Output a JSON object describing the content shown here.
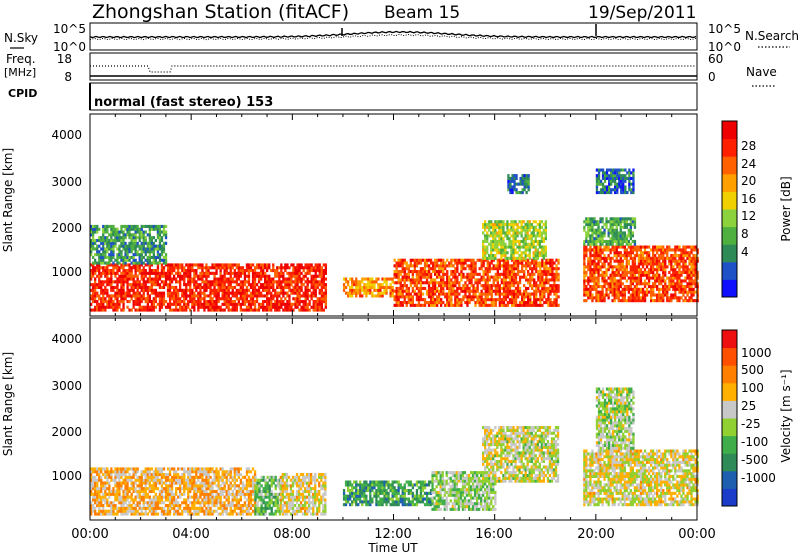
{
  "header": {
    "title": "Zhongshan Station (fitACF)",
    "beam": "Beam 15",
    "date": "19/Sep/2011"
  },
  "left_labels": {
    "nsky": "N.Sky",
    "freq": "Freq.",
    "mhz": "[MHz]",
    "cpid": "CPID"
  },
  "right_labels": {
    "nsearch": "N.Search",
    "nave": "Nave"
  },
  "noise_panel": {
    "left_ticks": [
      "10^5",
      "10^0"
    ],
    "right_ticks": [
      "10^5",
      "10^0"
    ]
  },
  "freq_panel": {
    "left_ticks": [
      "18",
      "8"
    ],
    "right_ticks": [
      "60",
      "0"
    ]
  },
  "cpid_text": "normal (fast stereo) 153",
  "x_axis": {
    "ticks": [
      "00:00",
      "04:00",
      "08:00",
      "12:00",
      "16:00",
      "20:00",
      "00:00"
    ],
    "label": "Time UT"
  },
  "power_panel": {
    "ylabel": "Slant Range [km]",
    "yticks": [
      "4000",
      "3000",
      "2000",
      "1000"
    ],
    "cbar_label": "Power [dB]",
    "cbar_ticks": [
      "28",
      "24",
      "20",
      "16",
      "12",
      "8",
      "4"
    ],
    "colors": [
      "#1010ff",
      "#1e50c8",
      "#2e8b57",
      "#4fb040",
      "#8cd23c",
      "#f0d000",
      "#ffa000",
      "#ff6000",
      "#ff2000",
      "#ee0000"
    ]
  },
  "velocity_panel": {
    "ylabel": "Slant Range [km]",
    "yticks": [
      "4000",
      "3000",
      "2000",
      "1000"
    ],
    "cbar_label": "Velocity [m s⁻¹]",
    "cbar_ticks": [
      "1000",
      "500",
      "100",
      "25",
      "-25",
      "-100",
      "-500",
      "-1000"
    ],
    "colors": [
      "#1a3cc8",
      "#1f5fb0",
      "#2e8b57",
      "#3fae4a",
      "#90d030",
      "#c8c8c8",
      "#ffb000",
      "#ff8000",
      "#ff5000",
      "#ee1010"
    ]
  },
  "chart_data": {
    "type": "heatmap",
    "title": "Zhongshan Station (fitACF)",
    "xlabel": "Time UT",
    "ylabel": "Slant Range [km]",
    "x_range_hours": [
      0,
      24
    ],
    "y_range_km": [
      200,
      4500
    ],
    "panels": [
      {
        "quantity": "Power [dB]",
        "colorbar_range": [
          0,
          30
        ],
        "regions": [
          {
            "t0": 0.0,
            "t1": 9.3,
            "r0": 300,
            "r1": 1300,
            "level": 26
          },
          {
            "t0": 0.0,
            "t1": 3.0,
            "r0": 1300,
            "r1": 2100,
            "level": 9
          },
          {
            "t0": 10.0,
            "t1": 12.0,
            "r0": 600,
            "r1": 1000,
            "level": 20
          },
          {
            "t0": 12.0,
            "t1": 18.5,
            "r0": 400,
            "r1": 1400,
            "level": 24
          },
          {
            "t0": 15.5,
            "t1": 18.0,
            "r0": 1400,
            "r1": 2200,
            "level": 14
          },
          {
            "t0": 16.5,
            "t1": 17.3,
            "r0": 2800,
            "r1": 3200,
            "level": 6
          },
          {
            "t0": 19.5,
            "t1": 24.0,
            "r0": 500,
            "r1": 1700,
            "level": 24
          },
          {
            "t0": 19.5,
            "t1": 21.5,
            "r0": 1700,
            "r1": 2300,
            "level": 10
          },
          {
            "t0": 20.0,
            "t1": 21.5,
            "r0": 2800,
            "r1": 3300,
            "level": 6
          }
        ]
      },
      {
        "quantity": "Velocity [m s⁻¹]",
        "colorbar_range": [
          -1000,
          1000
        ],
        "regions": [
          {
            "t0": 0.0,
            "t1": 6.5,
            "r0": 300,
            "r1": 1300,
            "level": 300
          },
          {
            "t0": 6.5,
            "t1": 7.5,
            "r0": 300,
            "r1": 1100,
            "level": -200
          },
          {
            "t0": 7.5,
            "t1": 9.3,
            "r0": 300,
            "r1": 1200,
            "level": 150
          },
          {
            "t0": 10.0,
            "t1": 13.5,
            "r0": 500,
            "r1": 1000,
            "level": -400
          },
          {
            "t0": 13.5,
            "t1": 16.0,
            "r0": 400,
            "r1": 1200,
            "level": -80
          },
          {
            "t0": 15.5,
            "t1": 18.5,
            "r0": 1000,
            "r1": 2200,
            "level": 60
          },
          {
            "t0": 19.5,
            "t1": 24.0,
            "r0": 500,
            "r1": 1700,
            "level": 120
          },
          {
            "t0": 20.0,
            "t1": 21.5,
            "r0": 1700,
            "r1": 3000,
            "level": -50
          }
        ]
      }
    ]
  }
}
